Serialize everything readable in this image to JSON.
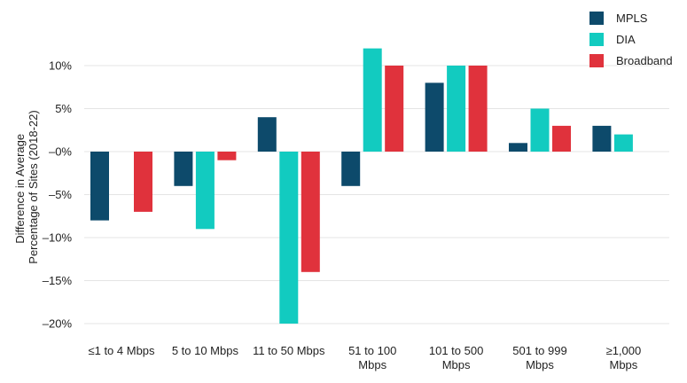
{
  "chart_data": {
    "type": "bar",
    "title": "",
    "xlabel": "",
    "ylabel_lines": [
      "Difference in Average",
      "Percentage of Sites (2018-22)"
    ],
    "categories": [
      [
        "≤1 to 4 Mbps"
      ],
      [
        "5 to 10 Mbps"
      ],
      [
        "11 to 50 Mbps"
      ],
      [
        "51 to 100",
        "Mbps"
      ],
      [
        "101 to 500",
        "Mbps"
      ],
      [
        "501 to 999",
        "Mbps"
      ],
      [
        "≥1,000",
        "Mbps"
      ]
    ],
    "series": [
      {
        "name": "MPLS",
        "color": "#0d4a6b",
        "values": [
          -8,
          -4,
          4,
          -4,
          8,
          1,
          3
        ]
      },
      {
        "name": "DIA",
        "color": "#12cbc0",
        "values": [
          null,
          -9,
          -20,
          12,
          10,
          5,
          2
        ]
      },
      {
        "name": "Broadband",
        "color": "#e0323c",
        "values": [
          -7,
          -1,
          -14,
          10,
          10,
          3,
          null
        ]
      }
    ],
    "ylim": [
      -20,
      12
    ],
    "yticks": [
      {
        "value": 10,
        "label": "10%"
      },
      {
        "value": 5,
        "label": "5%"
      },
      {
        "value": 0,
        "label": "–0%"
      },
      {
        "value": -5,
        "label": "–5%"
      },
      {
        "value": -10,
        "label": "–10%"
      },
      {
        "value": -15,
        "label": "–15%"
      },
      {
        "value": -20,
        "label": "–20%"
      }
    ],
    "grid": true,
    "legend_position": "top-right"
  }
}
